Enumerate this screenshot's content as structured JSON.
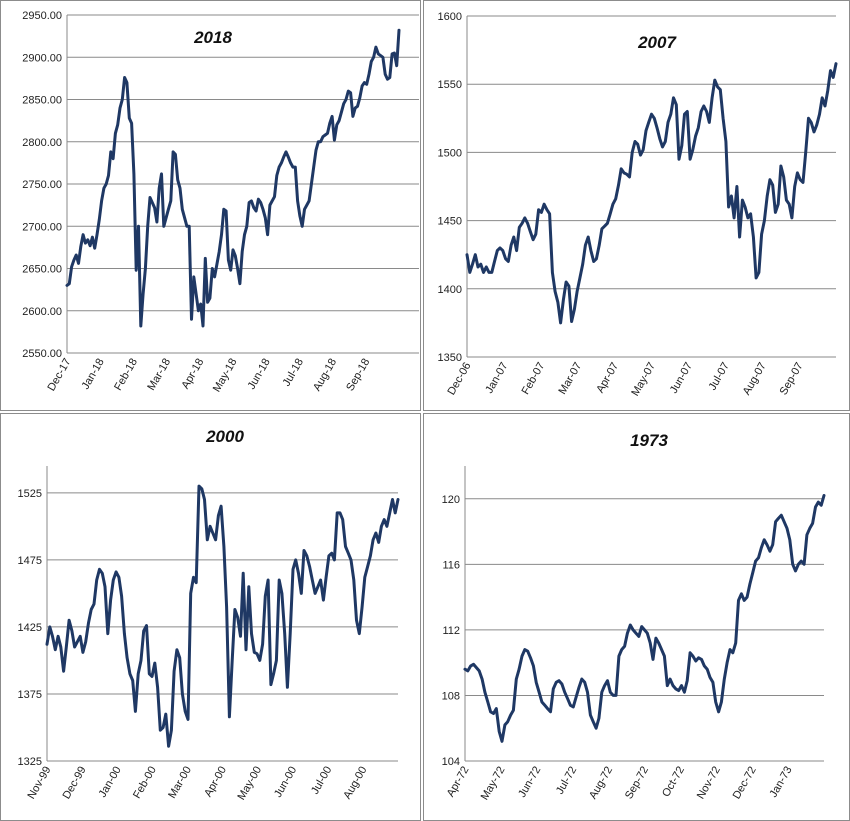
{
  "line_color": "#1f3864",
  "chart_data": [
    {
      "type": "line",
      "title": "2018",
      "yticks": [
        "2550.00",
        "2600.00",
        "2650.00",
        "2700.00",
        "2750.00",
        "2800.00",
        "2850.00",
        "2900.00",
        "2950.00"
      ],
      "ylim": [
        2550,
        2950
      ],
      "xticks": [
        "Dec-17",
        "Jan-18",
        "Feb-18",
        "Mar-18",
        "Apr-18",
        "May-18",
        "Jun-18",
        "Jul-18",
        "Aug-18",
        "Sep-18"
      ],
      "values": [
        2630,
        2632,
        2652,
        2660,
        2666,
        2656,
        2676,
        2690,
        2680,
        2684,
        2677,
        2687,
        2674,
        2690,
        2708,
        2730,
        2745,
        2750,
        2760,
        2788,
        2780,
        2810,
        2820,
        2840,
        2850,
        2876,
        2870,
        2828,
        2822,
        2762,
        2648,
        2700,
        2582,
        2620,
        2650,
        2700,
        2734,
        2728,
        2722,
        2705,
        2745,
        2762,
        2700,
        2710,
        2720,
        2730,
        2788,
        2785,
        2755,
        2745,
        2720,
        2710,
        2700,
        2700,
        2590,
        2640,
        2620,
        2600,
        2608,
        2582,
        2662,
        2610,
        2615,
        2650,
        2640,
        2655,
        2670,
        2690,
        2720,
        2718,
        2660,
        2648,
        2672,
        2665,
        2650,
        2632,
        2670,
        2690,
        2700,
        2728,
        2730,
        2722,
        2718,
        2732,
        2728,
        2720,
        2710,
        2690,
        2725,
        2730,
        2735,
        2760,
        2770,
        2775,
        2782,
        2788,
        2782,
        2775,
        2770,
        2770,
        2730,
        2712,
        2700,
        2720,
        2725,
        2730,
        2750,
        2770,
        2790,
        2800,
        2800,
        2806,
        2808,
        2810,
        2822,
        2830,
        2802,
        2820,
        2825,
        2835,
        2845,
        2850,
        2860,
        2858,
        2830,
        2840,
        2842,
        2852,
        2866,
        2870,
        2868,
        2880,
        2895,
        2900,
        2912,
        2904,
        2902,
        2900,
        2880,
        2874,
        2876,
        2904,
        2905,
        2890,
        2932
      ]
    },
    {
      "type": "line",
      "title": "2007",
      "yticks": [
        "1350",
        "1400",
        "1450",
        "1500",
        "1550",
        "1600"
      ],
      "ylim": [
        1350,
        1600
      ],
      "xticks": [
        "Dec-06",
        "Jan-07",
        "Feb-07",
        "Mar-07",
        "Apr-07",
        "May-07",
        "Jun-07",
        "Jul-07",
        "Aug-07",
        "Sep-07"
      ],
      "values": [
        1425,
        1412,
        1418,
        1425,
        1416,
        1418,
        1412,
        1416,
        1412,
        1412,
        1420,
        1428,
        1430,
        1428,
        1422,
        1420,
        1432,
        1438,
        1428,
        1445,
        1448,
        1452,
        1448,
        1442,
        1436,
        1440,
        1458,
        1456,
        1462,
        1458,
        1455,
        1412,
        1398,
        1390,
        1375,
        1392,
        1405,
        1402,
        1376,
        1385,
        1398,
        1408,
        1418,
        1432,
        1438,
        1428,
        1420,
        1422,
        1432,
        1444,
        1446,
        1448,
        1455,
        1462,
        1466,
        1476,
        1488,
        1485,
        1484,
        1482,
        1500,
        1508,
        1506,
        1498,
        1502,
        1516,
        1522,
        1528,
        1525,
        1518,
        1510,
        1504,
        1508,
        1522,
        1528,
        1540,
        1535,
        1495,
        1505,
        1528,
        1530,
        1495,
        1502,
        1512,
        1518,
        1530,
        1534,
        1530,
        1522,
        1540,
        1553,
        1548,
        1546,
        1525,
        1508,
        1460,
        1468,
        1452,
        1475,
        1438,
        1465,
        1460,
        1452,
        1455,
        1438,
        1408,
        1412,
        1440,
        1450,
        1468,
        1480,
        1476,
        1456,
        1462,
        1490,
        1482,
        1465,
        1462,
        1452,
        1475,
        1485,
        1480,
        1478,
        1500,
        1525,
        1522,
        1515,
        1520,
        1528,
        1540,
        1534,
        1545,
        1560,
        1555,
        1565
      ]
    },
    {
      "type": "line",
      "title": "2000",
      "yticks": [
        "1325",
        "1375",
        "1425",
        "1475",
        "1525"
      ],
      "ylim": [
        1325,
        1545
      ],
      "xticks": [
        "Nov-99",
        "Dec-99",
        "Jan-00",
        "Feb-00",
        "Mar-00",
        "Apr-00",
        "May-00",
        "Jun-00",
        "Jul-00",
        "Aug-00"
      ],
      "values": [
        1412,
        1425,
        1418,
        1408,
        1418,
        1410,
        1392,
        1410,
        1430,
        1422,
        1410,
        1414,
        1418,
        1406,
        1414,
        1428,
        1438,
        1442,
        1460,
        1468,
        1465,
        1455,
        1420,
        1445,
        1460,
        1466,
        1462,
        1448,
        1420,
        1402,
        1390,
        1385,
        1362,
        1390,
        1400,
        1422,
        1426,
        1390,
        1388,
        1398,
        1380,
        1348,
        1350,
        1360,
        1336,
        1348,
        1392,
        1408,
        1402,
        1375,
        1362,
        1356,
        1450,
        1462,
        1458,
        1530,
        1528,
        1520,
        1490,
        1500,
        1495,
        1490,
        1508,
        1515,
        1485,
        1440,
        1358,
        1400,
        1438,
        1432,
        1418,
        1465,
        1408,
        1455,
        1420,
        1406,
        1405,
        1400,
        1412,
        1448,
        1460,
        1382,
        1390,
        1400,
        1460,
        1450,
        1420,
        1380,
        1420,
        1468,
        1475,
        1465,
        1450,
        1482,
        1478,
        1470,
        1460,
        1450,
        1455,
        1460,
        1445,
        1462,
        1478,
        1480,
        1475,
        1510,
        1510,
        1505,
        1485,
        1480,
        1475,
        1460,
        1430,
        1420,
        1440,
        1462,
        1470,
        1478,
        1490,
        1495,
        1488,
        1500,
        1505,
        1500,
        1510,
        1520,
        1510,
        1520
      ]
    },
    {
      "type": "line",
      "title": "1973",
      "yticks": [
        "104",
        "108",
        "112",
        "116",
        "120"
      ],
      "ylim": [
        104,
        122
      ],
      "xticks": [
        "Apr-72",
        "May-72",
        "Jun-72",
        "Jul-72",
        "Aug-72",
        "Sep-72",
        "Oct-72",
        "Nov-72",
        "Dec-72",
        "Jan-73"
      ],
      "values": [
        109.6,
        109.5,
        109.8,
        109.9,
        109.7,
        109.5,
        109.0,
        108.2,
        107.6,
        107.0,
        106.9,
        107.2,
        105.8,
        105.2,
        106.2,
        106.4,
        106.8,
        107.1,
        109.0,
        109.6,
        110.4,
        110.8,
        110.7,
        110.3,
        109.8,
        108.8,
        108.2,
        107.6,
        107.4,
        107.2,
        107.0,
        108.4,
        108.8,
        108.9,
        108.7,
        108.2,
        107.8,
        107.4,
        107.3,
        107.9,
        108.5,
        109.0,
        108.8,
        108.2,
        106.8,
        106.4,
        106.0,
        106.6,
        108.2,
        108.6,
        108.9,
        108.2,
        108.0,
        108.0,
        110.4,
        110.8,
        111.0,
        111.8,
        112.3,
        112.0,
        111.8,
        111.6,
        112.2,
        112.0,
        111.8,
        111.2,
        110.2,
        111.5,
        111.2,
        110.8,
        110.4,
        108.6,
        109.0,
        108.6,
        108.4,
        108.3,
        108.6,
        108.2,
        108.9,
        110.6,
        110.4,
        110.1,
        110.3,
        110.2,
        109.8,
        109.6,
        109.1,
        108.8,
        107.6,
        107.0,
        107.6,
        109.0,
        110.0,
        110.8,
        110.6,
        111.2,
        113.8,
        114.2,
        113.8,
        114.0,
        114.8,
        115.5,
        116.2,
        116.4,
        117.0,
        117.5,
        117.2,
        116.8,
        117.2,
        118.6,
        118.8,
        119.0,
        118.6,
        118.2,
        117.5,
        116.0,
        115.6,
        116.0,
        116.2,
        116.0,
        117.8,
        118.2,
        118.5,
        119.5,
        119.8,
        119.6,
        120.2
      ]
    }
  ]
}
